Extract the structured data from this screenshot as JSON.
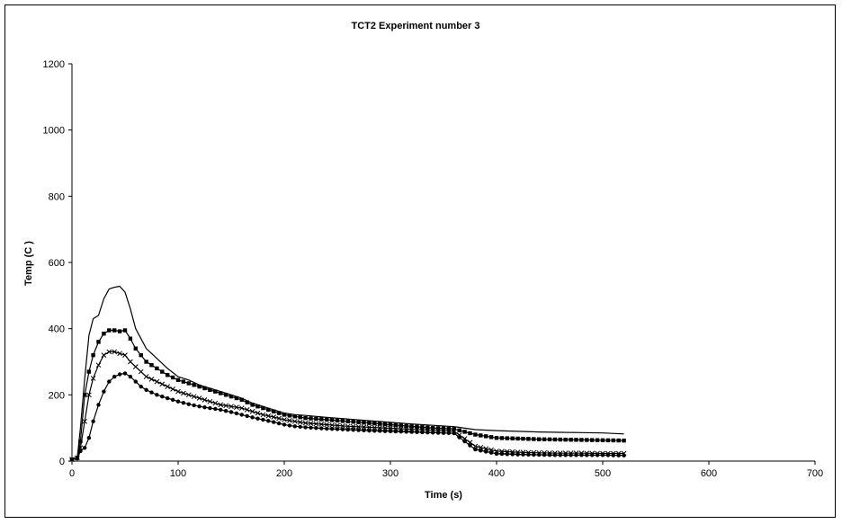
{
  "chart_data": {
    "type": "line",
    "title": "TCT2 Experiment number 3",
    "xlabel": "Time (s)",
    "ylabel": "Temp (C )",
    "xlim": [
      0,
      700
    ],
    "ylim": [
      0,
      1200
    ],
    "x_ticks": [
      0,
      100,
      200,
      300,
      400,
      500,
      600,
      700
    ],
    "y_ticks": [
      0,
      200,
      400,
      600,
      800,
      1000,
      1200
    ],
    "grid": false,
    "legend": "none",
    "series": [
      {
        "marker": "none",
        "color": "#000000",
        "points": [
          [
            0,
            5
          ],
          [
            5,
            10
          ],
          [
            8,
            100
          ],
          [
            12,
            250
          ],
          [
            16,
            380
          ],
          [
            20,
            430
          ],
          [
            25,
            440
          ],
          [
            30,
            490
          ],
          [
            35,
            520
          ],
          [
            40,
            525
          ],
          [
            45,
            528
          ],
          [
            50,
            510
          ],
          [
            55,
            460
          ],
          [
            60,
            400
          ],
          [
            65,
            370
          ],
          [
            70,
            340
          ],
          [
            80,
            310
          ],
          [
            90,
            280
          ],
          [
            100,
            255
          ],
          [
            110,
            245
          ],
          [
            120,
            230
          ],
          [
            130,
            220
          ],
          [
            140,
            210
          ],
          [
            150,
            200
          ],
          [
            160,
            190
          ],
          [
            170,
            175
          ],
          [
            180,
            165
          ],
          [
            190,
            155
          ],
          [
            200,
            145
          ],
          [
            210,
            140
          ],
          [
            220,
            138
          ],
          [
            240,
            132
          ],
          [
            260,
            127
          ],
          [
            280,
            122
          ],
          [
            300,
            117
          ],
          [
            320,
            112
          ],
          [
            340,
            108
          ],
          [
            360,
            104
          ],
          [
            380,
            95
          ],
          [
            400,
            92
          ],
          [
            420,
            90
          ],
          [
            440,
            88
          ],
          [
            460,
            87
          ],
          [
            480,
            86
          ],
          [
            500,
            85
          ],
          [
            520,
            82
          ]
        ]
      },
      {
        "marker": "square",
        "color": "#000000",
        "points": [
          [
            0,
            5
          ],
          [
            5,
            10
          ],
          [
            8,
            60
          ],
          [
            12,
            200
          ],
          [
            16,
            270
          ],
          [
            20,
            320
          ],
          [
            25,
            360
          ],
          [
            30,
            385
          ],
          [
            35,
            395
          ],
          [
            40,
            395
          ],
          [
            45,
            392
          ],
          [
            50,
            395
          ],
          [
            55,
            370
          ],
          [
            60,
            340
          ],
          [
            65,
            320
          ],
          [
            70,
            300
          ],
          [
            80,
            280
          ],
          [
            90,
            260
          ],
          [
            100,
            245
          ],
          [
            110,
            235
          ],
          [
            120,
            225
          ],
          [
            130,
            215
          ],
          [
            140,
            205
          ],
          [
            150,
            195
          ],
          [
            160,
            185
          ],
          [
            170,
            170
          ],
          [
            180,
            160
          ],
          [
            190,
            150
          ],
          [
            200,
            140
          ],
          [
            210,
            135
          ],
          [
            220,
            130
          ],
          [
            240,
            125
          ],
          [
            260,
            120
          ],
          [
            280,
            115
          ],
          [
            300,
            110
          ],
          [
            320,
            105
          ],
          [
            340,
            100
          ],
          [
            360,
            97
          ],
          [
            380,
            80
          ],
          [
            400,
            70
          ],
          [
            420,
            68
          ],
          [
            440,
            66
          ],
          [
            460,
            65
          ],
          [
            480,
            64
          ],
          [
            500,
            63
          ],
          [
            520,
            62
          ]
        ]
      },
      {
        "marker": "x",
        "color": "#000000",
        "points": [
          [
            0,
            5
          ],
          [
            5,
            10
          ],
          [
            8,
            40
          ],
          [
            12,
            120
          ],
          [
            16,
            200
          ],
          [
            20,
            250
          ],
          [
            25,
            290
          ],
          [
            30,
            320
          ],
          [
            35,
            330
          ],
          [
            40,
            330
          ],
          [
            45,
            325
          ],
          [
            50,
            320
          ],
          [
            55,
            300
          ],
          [
            60,
            285
          ],
          [
            65,
            270
          ],
          [
            70,
            255
          ],
          [
            80,
            240
          ],
          [
            90,
            225
          ],
          [
            100,
            210
          ],
          [
            110,
            200
          ],
          [
            120,
            190
          ],
          [
            130,
            180
          ],
          [
            140,
            170
          ],
          [
            150,
            165
          ],
          [
            160,
            160
          ],
          [
            170,
            150
          ],
          [
            180,
            140
          ],
          [
            190,
            133
          ],
          [
            200,
            125
          ],
          [
            210,
            120
          ],
          [
            220,
            115
          ],
          [
            240,
            110
          ],
          [
            260,
            105
          ],
          [
            280,
            102
          ],
          [
            300,
            99
          ],
          [
            320,
            96
          ],
          [
            340,
            93
          ],
          [
            360,
            90
          ],
          [
            380,
            45
          ],
          [
            400,
            30
          ],
          [
            420,
            27
          ],
          [
            440,
            25
          ],
          [
            460,
            24
          ],
          [
            480,
            24
          ],
          [
            500,
            23
          ],
          [
            520,
            23
          ]
        ]
      },
      {
        "marker": "circle",
        "color": "#000000",
        "points": [
          [
            0,
            5
          ],
          [
            5,
            8
          ],
          [
            8,
            30
          ],
          [
            12,
            40
          ],
          [
            16,
            70
          ],
          [
            20,
            120
          ],
          [
            25,
            170
          ],
          [
            30,
            210
          ],
          [
            35,
            240
          ],
          [
            40,
            255
          ],
          [
            45,
            262
          ],
          [
            50,
            265
          ],
          [
            55,
            255
          ],
          [
            60,
            240
          ],
          [
            65,
            225
          ],
          [
            70,
            215
          ],
          [
            80,
            200
          ],
          [
            90,
            190
          ],
          [
            100,
            180
          ],
          [
            110,
            172
          ],
          [
            120,
            165
          ],
          [
            130,
            160
          ],
          [
            140,
            155
          ],
          [
            150,
            148
          ],
          [
            160,
            140
          ],
          [
            170,
            132
          ],
          [
            180,
            125
          ],
          [
            190,
            118
          ],
          [
            200,
            110
          ],
          [
            210,
            105
          ],
          [
            220,
            102
          ],
          [
            240,
            98
          ],
          [
            260,
            95
          ],
          [
            280,
            92
          ],
          [
            300,
            90
          ],
          [
            320,
            88
          ],
          [
            340,
            86
          ],
          [
            360,
            84
          ],
          [
            380,
            35
          ],
          [
            400,
            22
          ],
          [
            420,
            20
          ],
          [
            440,
            19
          ],
          [
            460,
            18
          ],
          [
            480,
            18
          ],
          [
            500,
            18
          ],
          [
            520,
            17
          ]
        ]
      }
    ]
  }
}
